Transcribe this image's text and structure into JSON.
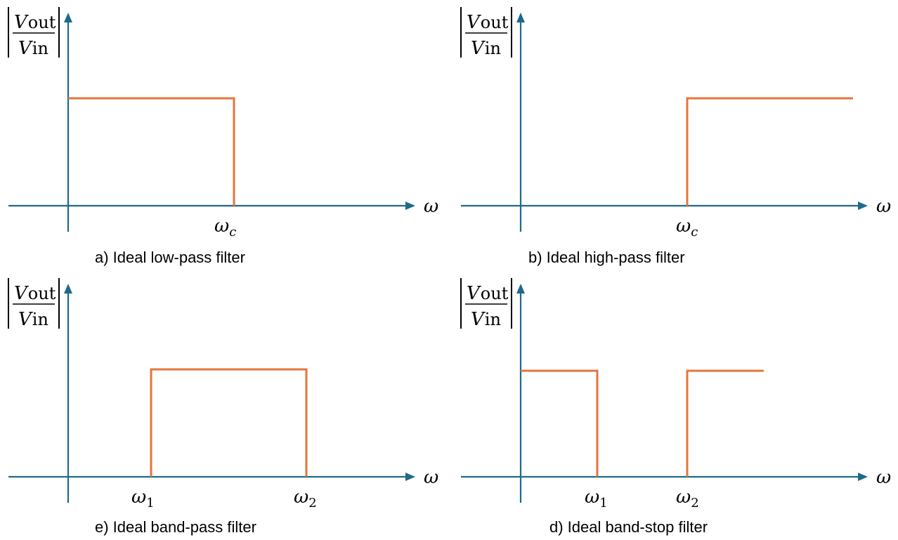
{
  "axis_labels": {
    "y_numerator": "V",
    "y_numerator_sub": "out",
    "y_denominator": "V",
    "y_denominator_sub": "in",
    "x": "ω"
  },
  "panels": [
    {
      "id": "a",
      "caption": "a) Ideal low-pass filter",
      "ticks": [
        {
          "symbol": "ω",
          "sub": "c"
        }
      ],
      "color": "#e5753b"
    },
    {
      "id": "b",
      "caption": "b) Ideal high-pass filter",
      "ticks": [
        {
          "symbol": "ω",
          "sub": "c"
        }
      ],
      "color": "#e5753b"
    },
    {
      "id": "e",
      "caption": "e) Ideal band-pass filter",
      "ticks": [
        {
          "symbol": "ω",
          "sub": "1"
        },
        {
          "symbol": "ω",
          "sub": "2"
        }
      ],
      "color": "#e5753b"
    },
    {
      "id": "d",
      "caption": "d) Ideal band-stop filter",
      "ticks": [
        {
          "symbol": "ω",
          "sub": "1"
        },
        {
          "symbol": "ω",
          "sub": "2"
        }
      ],
      "color": "#e5753b"
    }
  ],
  "colors": {
    "axis": "#1f6a8a",
    "response": "#e5753b"
  }
}
